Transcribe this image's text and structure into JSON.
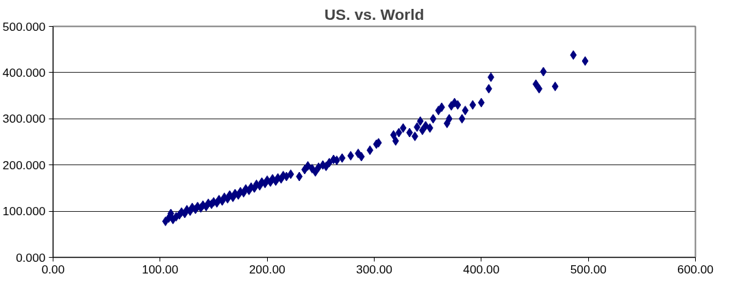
{
  "chart_data": {
    "type": "scatter",
    "title": "US. vs. World",
    "marker": "diamond",
    "grid": "y",
    "xlim": [
      0,
      600
    ],
    "xticks": [
      {
        "value": 0,
        "label": "0.00"
      },
      {
        "value": 100,
        "label": "100.00"
      },
      {
        "value": 200,
        "label": "200.00"
      },
      {
        "value": 300,
        "label": "300.00"
      },
      {
        "value": 400,
        "label": "400.00"
      },
      {
        "value": 500,
        "label": "500.00"
      },
      {
        "value": 600,
        "label": "600.00"
      }
    ],
    "ylim": [
      0,
      500
    ],
    "yticks": [
      {
        "value": 0,
        "label": "0.000"
      },
      {
        "value": 100,
        "label": "100.000"
      },
      {
        "value": 200,
        "label": "200.000"
      },
      {
        "value": 300,
        "label": "300.000"
      },
      {
        "value": 400,
        "label": "400.000"
      },
      {
        "value": 500,
        "label": "500.000"
      }
    ],
    "series": [
      {
        "color": "#000080",
        "x": [
          105,
          108,
          110,
          112,
          115,
          118,
          120,
          123,
          125,
          128,
          130,
          133,
          135,
          138,
          140,
          143,
          145,
          148,
          150,
          153,
          155,
          158,
          160,
          163,
          165,
          168,
          170,
          173,
          175,
          178,
          180,
          183,
          185,
          188,
          190,
          193,
          195,
          198,
          200,
          203,
          205,
          208,
          210,
          213,
          215,
          218,
          222,
          230,
          235,
          238,
          242,
          245,
          248,
          252,
          255,
          258,
          262,
          265,
          270,
          278,
          285,
          288,
          296,
          302,
          304,
          318,
          320,
          323,
          327,
          333,
          338,
          340,
          343,
          345,
          348,
          352,
          355,
          360,
          363,
          368,
          370,
          372,
          375,
          378,
          382,
          385,
          392,
          400,
          407,
          409,
          451,
          454,
          458,
          469,
          486,
          497
        ],
        "values": [
          78,
          85,
          95,
          82,
          88,
          92,
          98,
          95,
          103,
          100,
          108,
          104,
          110,
          107,
          113,
          110,
          117,
          115,
          120,
          118,
          125,
          122,
          130,
          127,
          135,
          130,
          138,
          135,
          142,
          140,
          148,
          145,
          152,
          150,
          158,
          155,
          163,
          160,
          167,
          163,
          170,
          165,
          172,
          170,
          177,
          175,
          180,
          175,
          190,
          198,
          192,
          185,
          195,
          200,
          197,
          205,
          212,
          210,
          215,
          220,
          225,
          218,
          232,
          245,
          248,
          265,
          252,
          270,
          280,
          270,
          262,
          282,
          295,
          275,
          285,
          280,
          300,
          318,
          325,
          290,
          300,
          328,
          335,
          330,
          300,
          318,
          330,
          335,
          365,
          390,
          375,
          365,
          402,
          370,
          438,
          425
        ]
      }
    ]
  }
}
